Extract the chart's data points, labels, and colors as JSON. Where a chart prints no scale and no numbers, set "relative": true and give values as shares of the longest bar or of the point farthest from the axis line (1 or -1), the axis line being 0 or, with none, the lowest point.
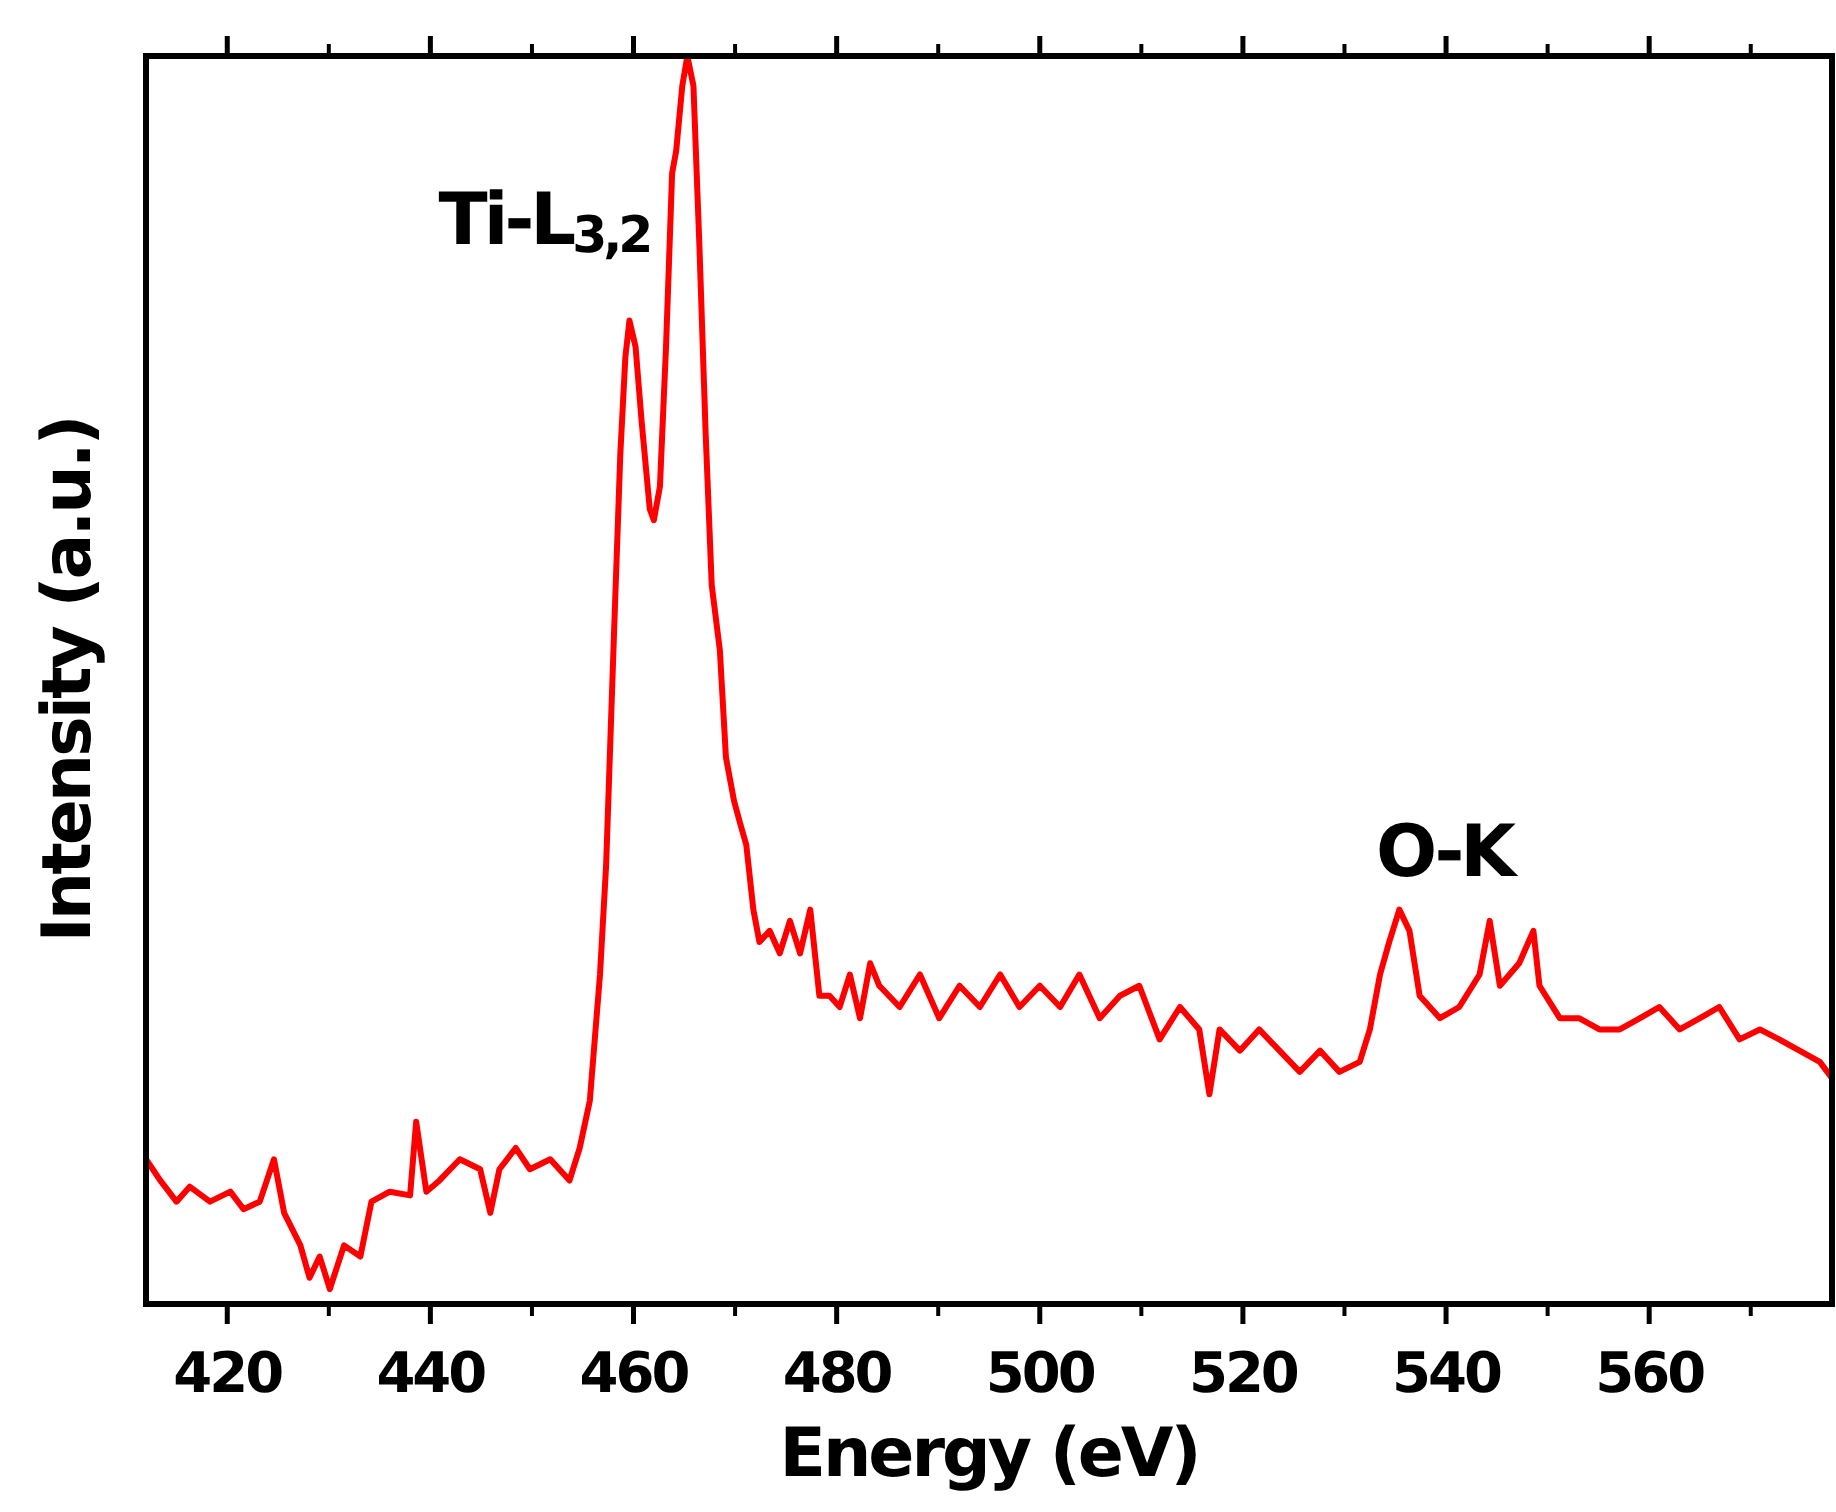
{
  "chart_data": {
    "type": "line",
    "xlabel": "Energy (eV)",
    "ylabel": "Intensity (a.u.)",
    "relative": true,
    "xlim": [
      412,
      578
    ],
    "xticks": [
      420,
      440,
      460,
      480,
      500,
      520,
      540,
      560
    ],
    "grid": false,
    "marker": "none",
    "line_style": "solid",
    "annotations": [
      "Ti-L$_{3,2}$",
      "O-K"
    ],
    "series": [
      {
        "color": "#ff0000",
        "x": [
          412.0,
          413.4,
          415.0,
          416.3,
          418.3,
          420.3,
          421.6,
          423.2,
          424.6,
          425.6,
          427.2,
          428.1,
          429.1,
          430.1,
          431.5,
          433.1,
          434.2,
          436.0,
          438.0,
          438.6,
          439.6,
          440.9,
          442.9,
          444.9,
          445.9,
          446.8,
          448.4,
          449.8,
          451.8,
          453.7,
          454.7,
          455.7,
          456.7,
          457.3,
          458.1,
          458.7,
          459.2,
          459.6,
          460.2,
          460.8,
          461.6,
          462.0,
          462.6,
          463.2,
          463.8,
          464.2,
          464.8,
          465.3,
          465.9,
          466.5,
          467.1,
          467.7,
          468.5,
          469.1,
          469.9,
          470.5,
          471.1,
          471.8,
          472.4,
          473.4,
          474.4,
          475.4,
          476.4,
          477.4,
          478.3,
          479.3,
          480.3,
          481.3,
          482.3,
          483.3,
          484.2,
          486.2,
          488.2,
          490.1,
          492.1,
          494.1,
          496.1,
          498.0,
          500.0,
          502.0,
          503.9,
          505.9,
          507.9,
          509.8,
          511.8,
          513.8,
          515.7,
          516.7,
          517.7,
          519.7,
          521.6,
          523.6,
          525.6,
          527.6,
          529.5,
          531.5,
          532.5,
          533.5,
          534.4,
          535.4,
          536.4,
          537.4,
          538.4,
          539.4,
          541.3,
          543.3,
          544.3,
          545.3,
          547.2,
          548.6,
          549.2,
          551.2,
          553.1,
          555.1,
          557.1,
          559.1,
          561.0,
          563.0,
          565.0,
          566.9,
          568.9,
          570.9,
          572.8,
          574.8,
          576.8,
          578.0
        ],
        "values": [
          0.116,
          0.099,
          0.082,
          0.094,
          0.082,
          0.09,
          0.076,
          0.082,
          0.116,
          0.073,
          0.047,
          0.021,
          0.038,
          0.012,
          0.047,
          0.038,
          0.082,
          0.09,
          0.087,
          0.146,
          0.09,
          0.099,
          0.116,
          0.108,
          0.073,
          0.108,
          0.125,
          0.108,
          0.116,
          0.099,
          0.125,
          0.163,
          0.264,
          0.351,
          0.542,
          0.681,
          0.759,
          0.788,
          0.767,
          0.707,
          0.637,
          0.628,
          0.655,
          0.767,
          0.906,
          0.924,
          0.976,
          1,
          0.976,
          0.845,
          0.698,
          0.576,
          0.524,
          0.438,
          0.403,
          0.385,
          0.368,
          0.316,
          0.29,
          0.299,
          0.281,
          0.307,
          0.281,
          0.316,
          0.247,
          0.247,
          0.238,
          0.264,
          0.229,
          0.273,
          0.255,
          0.238,
          0.264,
          0.229,
          0.255,
          0.238,
          0.264,
          0.238,
          0.255,
          0.238,
          0.264,
          0.229,
          0.247,
          0.255,
          0.212,
          0.238,
          0.22,
          0.168,
          0.22,
          0.203,
          0.22,
          0.203,
          0.186,
          0.203,
          0.186,
          0.194,
          0.22,
          0.264,
          0.29,
          0.316,
          0.299,
          0.247,
          0.238,
          0.229,
          0.238,
          0.264,
          0.307,
          0.255,
          0.273,
          0.299,
          0.255,
          0.229,
          0.229,
          0.22,
          0.22,
          0.229,
          0.238,
          0.22,
          0.229,
          0.238,
          0.212,
          0.22,
          0.212,
          0.203,
          0.194,
          0.181
        ]
      }
    ]
  }
}
